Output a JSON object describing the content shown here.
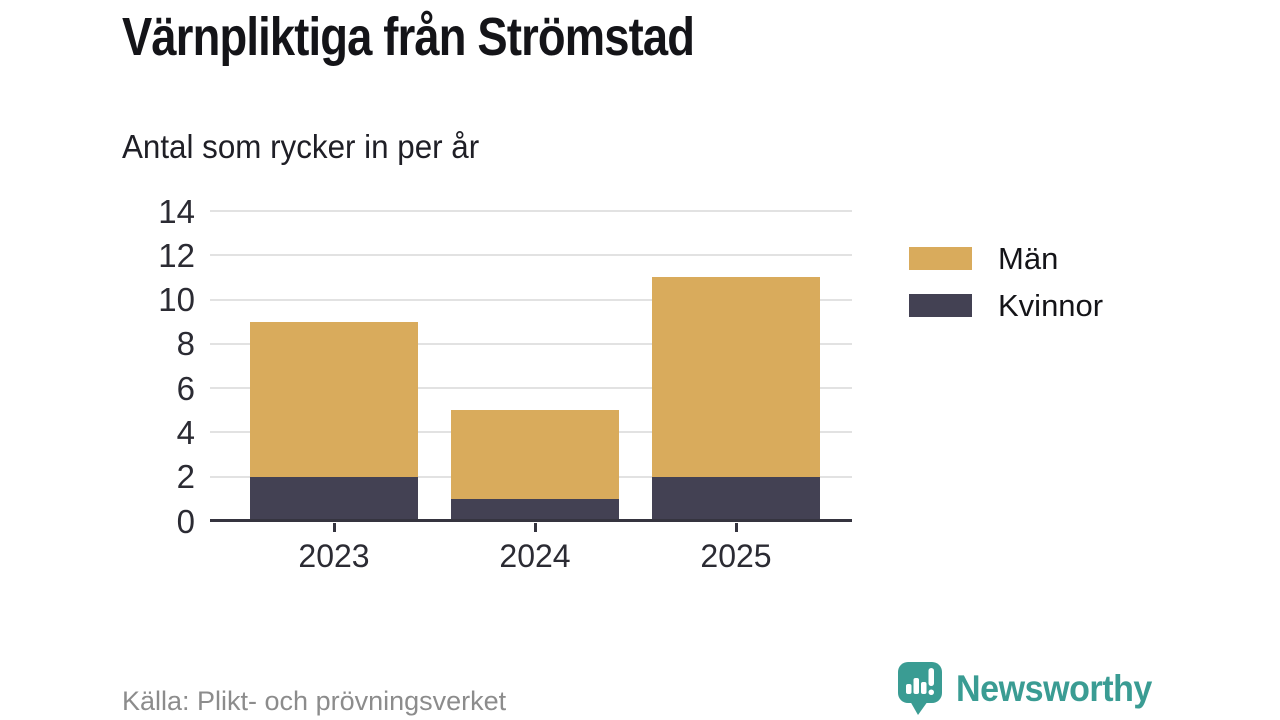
{
  "header": {
    "title": "Värnpliktiga från Strömstad",
    "subtitle": "Antal som rycker in per år"
  },
  "chart_data": {
    "type": "bar",
    "stacked": true,
    "title": "Värnpliktiga från Strömstad",
    "subtitle": "Antal som rycker in per år",
    "categories": [
      "2023",
      "2024",
      "2025"
    ],
    "series": [
      {
        "name": "Män",
        "color": "#d9ab5c",
        "values": [
          7,
          4,
          9
        ]
      },
      {
        "name": "Kvinnor",
        "color": "#434153",
        "values": [
          2,
          1,
          2
        ]
      }
    ],
    "stacked_totals": [
      9,
      5,
      11
    ],
    "ylim": [
      0,
      14
    ],
    "ytick_step": 2,
    "ytick_labels": [
      "0",
      "2",
      "4",
      "6",
      "8",
      "10",
      "12",
      "14"
    ],
    "xlabel": "",
    "ylabel": "",
    "grid": true,
    "legend_position": "right-top"
  },
  "legend": {
    "items": [
      {
        "label": "Män",
        "color": "#d9ab5c"
      },
      {
        "label": "Kvinnor",
        "color": "#434153"
      }
    ]
  },
  "footer": {
    "source": "Källa: Plikt- och prövningsverket",
    "brand": {
      "name": "Newsworthy",
      "color": "#3a9c93",
      "icon": "chart-speech-bubble-icon"
    }
  },
  "colors": {
    "man": "#d9ab5c",
    "kvinnor": "#434153",
    "gridline": "#e2e2e2",
    "axis": "#35343f",
    "tick_text": "#2b2b33",
    "source_text": "#8c8c8c",
    "brand_teal": "#3a9c93",
    "background": "#ffffff"
  }
}
